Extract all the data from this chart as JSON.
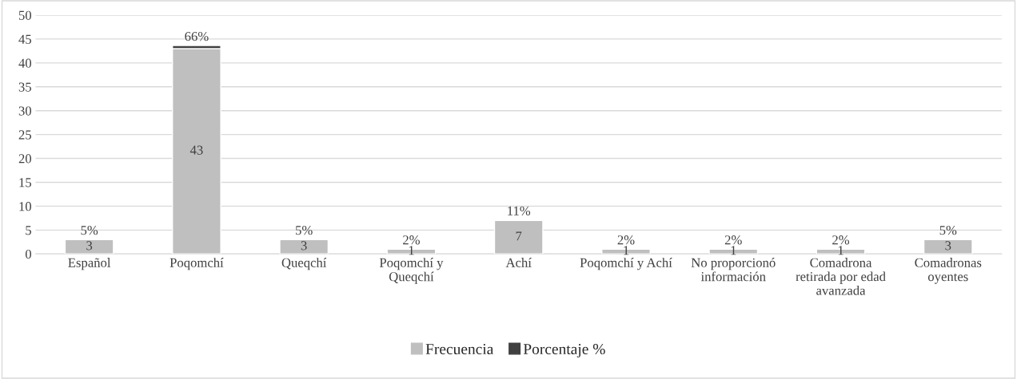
{
  "chart_data": {
    "type": "bar",
    "stacked": true,
    "categories": [
      "Español",
      "Poqomchí",
      "Queqchí",
      "Poqomchí y\nQueqchí",
      "Achí",
      "Poqomchí y Achí",
      "No proporcionó\ninformación",
      "Comadrona\nretirada por edad\navanzada",
      "Comadronas\noyentes"
    ],
    "series": [
      {
        "name": "Frecuencia",
        "color": "#bfbfbf",
        "values": [
          3,
          43,
          3,
          1,
          7,
          1,
          1,
          1,
          3
        ],
        "value_labels": [
          "3",
          "43",
          "3",
          "1",
          "7",
          "1",
          "1",
          "1",
          "3"
        ]
      },
      {
        "name": "Porcentaje %",
        "color": "#404040",
        "values": [
          0.05,
          0.66,
          0.05,
          0.02,
          0.11,
          0.02,
          0.02,
          0.02,
          0.05
        ],
        "value_labels": [
          "5%",
          "66%",
          "5%",
          "2%",
          "11%",
          "2%",
          "2%",
          "2%",
          "5%"
        ]
      }
    ],
    "ylim": [
      0,
      50
    ],
    "yticks": [
      0,
      5,
      10,
      15,
      20,
      25,
      30,
      35,
      40,
      45,
      50
    ],
    "grid": "y",
    "legend": "bottom"
  }
}
